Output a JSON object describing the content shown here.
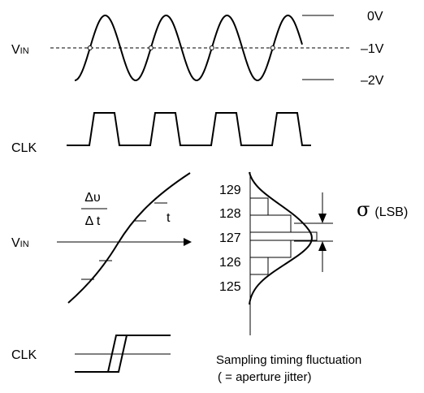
{
  "vin_waveform": {
    "signal_label_main": "V",
    "signal_label_sub": "IN",
    "level_top": "0V",
    "level_mid": "–1V",
    "level_bot": "–2V"
  },
  "clock_waveform": {
    "label": "CLK"
  },
  "slope_detail": {
    "numerator": "Δυ",
    "denominator": "Δ t",
    "time_axis_label": "t",
    "signal_label_main": "V",
    "signal_label_sub": "IN"
  },
  "histogram": {
    "codes": [
      "129",
      "128",
      "127",
      "126",
      "125"
    ],
    "sigma_symbol": "σ",
    "sigma_unit": "(LSB)"
  },
  "jitter_clock": {
    "label": "CLK"
  },
  "caption": {
    "line1": "Sampling timing fluctuation",
    "line2": "( = aperture jitter)"
  },
  "colors": {
    "ink": "#000000",
    "background": "#ffffff"
  }
}
